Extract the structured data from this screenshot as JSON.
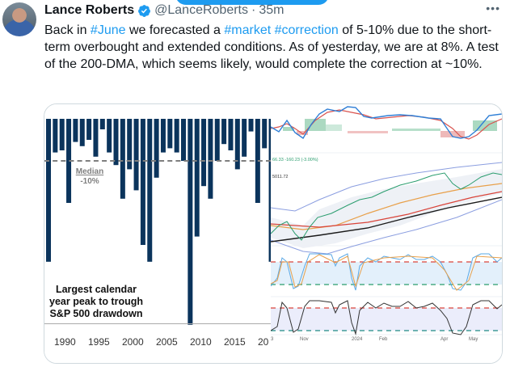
{
  "tweet": {
    "author_name": "Lance Roberts",
    "handle": "@LanceRoberts",
    "separator": "·",
    "time": "35m",
    "more_label": "•••",
    "text_parts": [
      {
        "text": "Back in ",
        "tag": false
      },
      {
        "text": "#June",
        "tag": true
      },
      {
        "text": " we forecasted a ",
        "tag": false
      },
      {
        "text": "#market",
        "tag": true
      },
      {
        "text": " ",
        "tag": false
      },
      {
        "text": "#correction",
        "tag": true
      },
      {
        "text": " of 5-10% due to the short-term overbought and extended conditions. As of yesterday, we are at 8%. A test of the 200-DMA, which seems likely, would complete the correction at ~10%.",
        "tag": false
      }
    ],
    "colors": {
      "link": "#1d9bf0",
      "text": "#0f1419",
      "muted": "#536471"
    }
  },
  "chart_data": [
    {
      "type": "bar",
      "title": "Largest calendar year peak to trough S&P 500 drawdown",
      "xlabel": "",
      "ylabel": "",
      "x_tick_labels": [
        "1990",
        "1995",
        "2000",
        "2005",
        "2010",
        "2015",
        "20"
      ],
      "categories": [
        "1987",
        "1988",
        "1989",
        "1990",
        "1991",
        "1992",
        "1993",
        "1994",
        "1995",
        "1996",
        "1997",
        "1998",
        "1999",
        "2000",
        "2001",
        "2002",
        "2003",
        "2004",
        "2005",
        "2006",
        "2007",
        "2008",
        "2009",
        "2010",
        "2011",
        "2012",
        "2013",
        "2014",
        "2015",
        "2016",
        "2017",
        "2018",
        "2019",
        "2020"
      ],
      "values": [
        -34,
        -8,
        -7.5,
        -20,
        -5.5,
        -6.5,
        -5,
        -9,
        -2.5,
        -8,
        -11,
        -19,
        -12,
        -17,
        -30,
        -34,
        -14,
        -8,
        -7,
        -8,
        -10,
        -49,
        -28,
        -16,
        -19,
        -10,
        -6,
        -7.5,
        -12,
        -9,
        -3,
        -20,
        -7,
        -34
      ],
      "annotation": {
        "label": "Median",
        "value_label": "-10%",
        "value": -10
      },
      "ylim": [
        -50,
        0
      ],
      "bar_color": "#0b345c"
    },
    {
      "type": "line",
      "title": "S&P 500 technical panel (MACD, price with Bollinger bands and moving averages, two oscillators)",
      "price_labels": [
        "66.33 -160.23 (-3.00%)",
        "5011.72"
      ],
      "x_tick_labels": [
        "3",
        "Nov",
        "2024",
        "Feb",
        "Apr",
        "May"
      ],
      "series_colors": {
        "macd": "#2f7fd6",
        "signal": "#d9534f",
        "ma50": "#e8a04a",
        "ma100": "#d9443a",
        "ma200": "#1a1a1a",
        "bands": "#7b8fd6",
        "overbought": "#d9443a",
        "oversold": "#2a9d6e"
      }
    }
  ]
}
